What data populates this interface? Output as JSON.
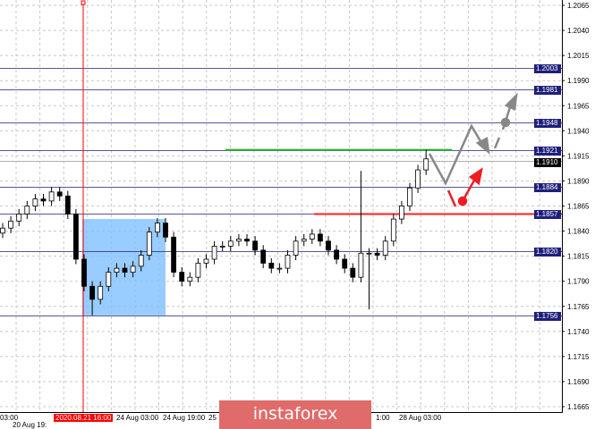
{
  "chart_data": {
    "type": "candlestick",
    "ylim": [
      1.1665,
      1.2065
    ],
    "y_ticks": [
      "1.2065",
      "1.2040",
      "1.2015",
      "1.1990",
      "1.1965",
      "1.1940",
      "1.1915",
      "1.1890",
      "1.1865",
      "1.1840",
      "1.1815",
      "1.1790",
      "1.1765",
      "1.1740",
      "1.1715",
      "1.1690",
      "1.1665"
    ],
    "x_labels": [
      "03:00",
      "20 Aug 19:",
      "2020.08.21 16:00",
      "24 Aug 03:00",
      "24 Aug 19:00",
      "25",
      "1:00",
      "28 Aug 03:00"
    ],
    "grid": true,
    "open": [
      1.1838,
      1.1843,
      1.185,
      1.1857,
      1.1865,
      1.1872,
      1.187,
      1.1879,
      1.1875,
      1.1857,
      1.1812,
      1.1785,
      1.1772,
      1.1785,
      1.1799,
      1.1803,
      1.1799,
      1.1805,
      1.1816,
      1.1839,
      1.1848,
      1.1834,
      1.1799,
      1.179,
      1.1794,
      1.1808,
      1.1812,
      1.1825,
      1.1825,
      1.183,
      1.1832,
      1.183,
      1.1821,
      1.1808,
      1.1803,
      1.1803,
      1.1816,
      1.183,
      1.1832,
      1.1837,
      1.183,
      1.1821,
      1.1812,
      1.1803,
      1.1794,
      1.1818,
      1.1818,
      1.1816,
      1.183,
      1.1852,
      1.1865,
      1.1883,
      1.1901
    ],
    "high": [
      1.1848,
      1.1855,
      1.1862,
      1.187,
      1.1877,
      1.1877,
      1.1884,
      1.1884,
      1.188,
      1.1862,
      1.1817,
      1.179,
      1.179,
      1.1804,
      1.1808,
      1.1808,
      1.181,
      1.1821,
      1.1844,
      1.1853,
      1.1853,
      1.1839,
      1.1804,
      1.1799,
      1.1813,
      1.1817,
      1.183,
      1.183,
      1.1835,
      1.1837,
      1.1837,
      1.1835,
      1.1826,
      1.1813,
      1.1808,
      1.1821,
      1.1835,
      1.1837,
      1.1842,
      1.1842,
      1.1835,
      1.1826,
      1.1817,
      1.1808,
      1.19,
      1.1823,
      1.1823,
      1.1835,
      1.1857,
      1.187,
      1.1888,
      1.1906,
      1.1921
    ],
    "low": [
      1.1833,
      1.1838,
      1.1845,
      1.1852,
      1.186,
      1.1865,
      1.1865,
      1.187,
      1.1852,
      1.1807,
      1.178,
      1.1756,
      1.1767,
      1.178,
      1.1794,
      1.1794,
      1.1794,
      1.18,
      1.1811,
      1.1834,
      1.1829,
      1.1794,
      1.1785,
      1.1785,
      1.1789,
      1.1803,
      1.1807,
      1.182,
      1.182,
      1.1825,
      1.1825,
      1.1816,
      1.1803,
      1.1798,
      1.1798,
      1.1798,
      1.1811,
      1.1825,
      1.1827,
      1.1825,
      1.1816,
      1.1807,
      1.1798,
      1.1789,
      1.1789,
      1.1762,
      1.1811,
      1.1811,
      1.1825,
      1.1847,
      1.186,
      1.1878,
      1.1896
    ],
    "close": [
      1.1843,
      1.185,
      1.1857,
      1.1865,
      1.1872,
      1.187,
      1.1879,
      1.1875,
      1.1857,
      1.1812,
      1.1785,
      1.1772,
      1.1785,
      1.1799,
      1.1803,
      1.1799,
      1.1805,
      1.1816,
      1.1839,
      1.1848,
      1.1834,
      1.1799,
      1.179,
      1.1794,
      1.1808,
      1.1812,
      1.1825,
      1.1825,
      1.183,
      1.1832,
      1.183,
      1.1821,
      1.1808,
      1.1803,
      1.1803,
      1.1816,
      1.183,
      1.1832,
      1.1837,
      1.183,
      1.1821,
      1.1812,
      1.1803,
      1.1794,
      1.1818,
      1.1818,
      1.1816,
      1.183,
      1.1852,
      1.1865,
      1.1883,
      1.1901,
      1.1912
    ],
    "levels": [
      {
        "price": "1.2003",
        "value": 1.2003
      },
      {
        "price": "1.1981",
        "value": 1.1981
      },
      {
        "price": "1.1948",
        "value": 1.1948
      },
      {
        "price": "1.1921",
        "value": 1.1921
      },
      {
        "price": "1.1884",
        "value": 1.1884
      },
      {
        "price": "1.1857",
        "value": 1.1857
      },
      {
        "price": "1.1820",
        "value": 1.182
      },
      {
        "price": "1.1756",
        "value": 1.1756
      }
    ],
    "current_price": {
      "price": "1.1910",
      "value": 1.191
    },
    "resistance_line": {
      "value": 1.1921,
      "color": "#2eb82e"
    },
    "support_line": {
      "value": 1.1857,
      "color": "#ff2222"
    },
    "highlight_zone": {
      "from_time": "2020.08.21 16:00",
      "price_high": 1.1852,
      "price_low": 1.1756,
      "color": "#7fbfff"
    },
    "vertical_marker": {
      "label": "2020.08.21 16:00",
      "color": "#ff0000"
    },
    "colors": {
      "level_line": "#1f1f7a",
      "candle": "#000000",
      "forecast": "#888888",
      "forecast_alt": "#ee1c25"
    }
  },
  "watermark": "instaforex"
}
